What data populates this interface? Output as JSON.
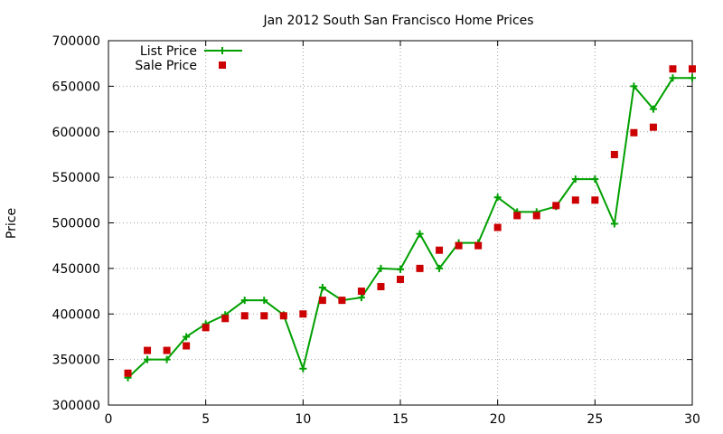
{
  "chart_data": {
    "type": "line",
    "title": "Jan 2012 South San Francisco Home Prices",
    "xlabel": "",
    "ylabel": "Price",
    "xlim": [
      0,
      30
    ],
    "ylim": [
      300000,
      700000
    ],
    "xticks": [
      0,
      5,
      10,
      15,
      20,
      25,
      30
    ],
    "yticks": [
      300000,
      350000,
      400000,
      450000,
      500000,
      550000,
      600000,
      650000,
      700000
    ],
    "grid": true,
    "legend_position": "top-left",
    "x": [
      1,
      2,
      3,
      4,
      5,
      6,
      7,
      8,
      9,
      10,
      11,
      12,
      13,
      14,
      15,
      16,
      17,
      18,
      19,
      20,
      21,
      22,
      23,
      24,
      25,
      26,
      27,
      28,
      29,
      30
    ],
    "series": [
      {
        "name": "List Price",
        "style": "line-points",
        "marker": "+",
        "color": "#00a000",
        "values": [
          330000,
          350000,
          350000,
          375000,
          389000,
          399000,
          415000,
          415000,
          399000,
          340000,
          429000,
          415000,
          418000,
          450000,
          449000,
          488000,
          450000,
          478000,
          478000,
          528000,
          512000,
          512000,
          518000,
          548000,
          548000,
          499000,
          650000,
          625000,
          659000,
          659000
        ]
      },
      {
        "name": "Sale Price",
        "style": "points",
        "marker": "square",
        "color": "#cc0000",
        "values": [
          335000,
          360000,
          360000,
          365000,
          385000,
          395000,
          398000,
          398000,
          398000,
          400000,
          415000,
          415000,
          425000,
          430000,
          438000,
          450000,
          470000,
          475000,
          475000,
          495000,
          508000,
          508000,
          519000,
          525000,
          525000,
          575000,
          599000,
          605000,
          669000,
          669000
        ]
      }
    ]
  }
}
